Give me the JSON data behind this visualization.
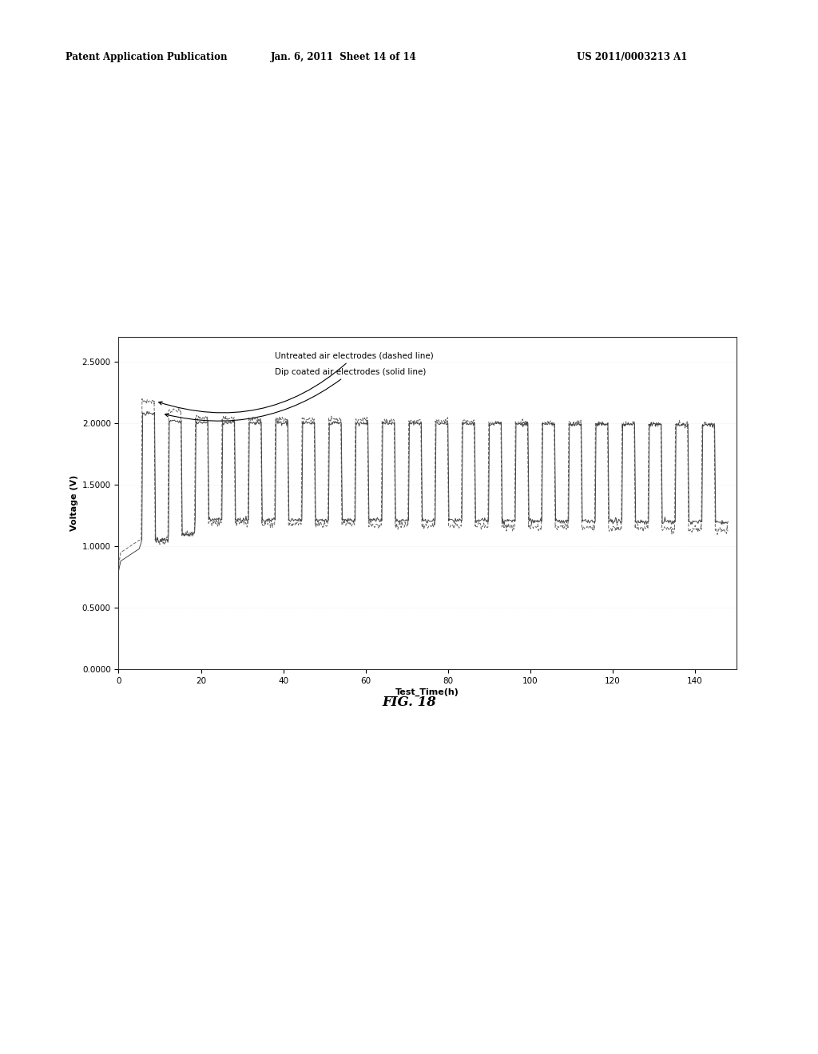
{
  "header_left": "Patent Application Publication",
  "header_center": "Jan. 6, 2011  Sheet 14 of 14",
  "header_right": "US 2011/0003213 A1",
  "fig_label": "FIG. 18",
  "xlabel": "Test_Time(h)",
  "ylabel": "Voltage (V)",
  "xlim": [
    0,
    150
  ],
  "ylim": [
    0.0,
    2.7
  ],
  "xticks": [
    0,
    20,
    40,
    60,
    80,
    100,
    120,
    140
  ],
  "ytick_labels": [
    "0.0000",
    "0.5000",
    "1.0000",
    "1.5000",
    "2.0000",
    "2.5000"
  ],
  "ytick_vals": [
    0.0,
    0.5,
    1.0,
    1.5,
    2.0,
    2.5
  ],
  "annotation1": "Untreated air electrodes (dashed line)",
  "annotation2": "Dip coated air electrodes (solid line)",
  "bg_color": "#ffffff",
  "plot_bg": "#ffffff",
  "num_cycles": 22,
  "total_time": 148,
  "cycle_start": 5.5
}
